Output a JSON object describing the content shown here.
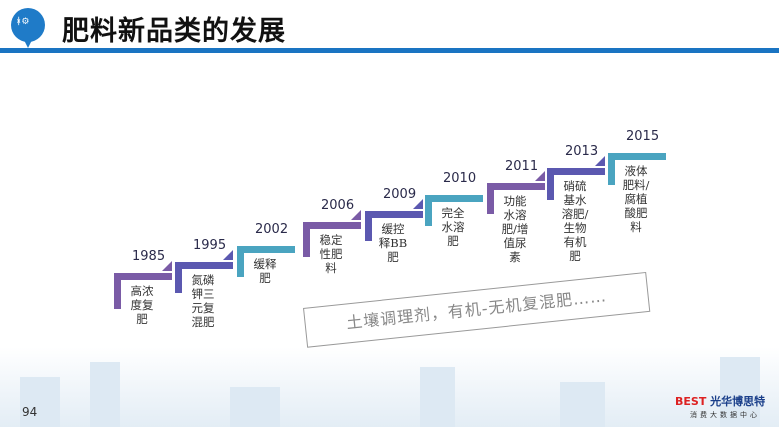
{
  "header": {
    "title": "肥料新品类的发展",
    "logo_icon": "farm-pin-icon"
  },
  "colors": {
    "purple": "#7a5ba6",
    "indigo": "#5b58b0",
    "teal": "#4aa4c0",
    "header_line": "#1a74c2"
  },
  "timeline": [
    {
      "year": "1985",
      "desc": "高浓度复肥",
      "color": "purple"
    },
    {
      "year": "1995",
      "desc": "氮磷钾三元复混肥",
      "color": "indigo"
    },
    {
      "year": "2002",
      "desc": "缓释肥",
      "color": "teal"
    },
    {
      "year": "2006",
      "desc": "稳定性肥料",
      "color": "purple"
    },
    {
      "year": "2009",
      "desc": "缓控释BB肥",
      "color": "indigo"
    },
    {
      "year": "2010",
      "desc": "完全水溶肥",
      "color": "teal"
    },
    {
      "year": "2011",
      "desc": "功能水溶肥/增值尿素",
      "color": "purple"
    },
    {
      "year": "2013",
      "desc": "硝硫基水溶肥/生物有机肥",
      "color": "indigo"
    },
    {
      "year": "2015",
      "desc": "液体肥料/腐植酸肥料",
      "color": "teal"
    }
  ],
  "note": "土壤调理剂，有机-无机复混肥……",
  "footer": {
    "page": "94",
    "brand_mark": "BEST",
    "brand_name": "光华博思特",
    "brand_sub": "消费大数据中心"
  }
}
